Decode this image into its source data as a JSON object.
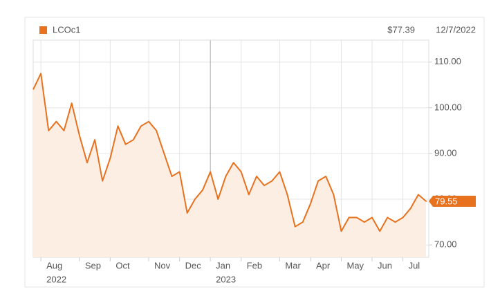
{
  "chart_data": {
    "type": "line",
    "annotations": [
      "$77.39",
      "12/7/2022"
    ],
    "categories": [
      null,
      "Aug",
      null,
      null,
      null,
      null,
      "Sep",
      null,
      null,
      null,
      "Oct",
      null,
      null,
      null,
      null,
      "Nov",
      null,
      null,
      null,
      "Dec",
      null,
      null,
      null,
      "Jan",
      null,
      null,
      null,
      "Feb",
      null,
      null,
      null,
      null,
      "Mar",
      null,
      null,
      null,
      "Apr",
      null,
      null,
      null,
      "May",
      null,
      null,
      null,
      "Jun",
      null,
      null,
      null,
      "Jul",
      null,
      null,
      null
    ],
    "x_year_labels": [
      "2022",
      "2023"
    ],
    "series": [
      {
        "name": "LCOc1",
        "color": "#e8711e",
        "values": [
          104,
          107.5,
          95,
          97,
          95,
          101,
          94,
          88,
          93,
          84,
          89,
          96,
          92,
          93,
          96,
          97,
          95,
          90,
          85,
          86,
          77,
          80,
          82,
          86,
          80,
          85,
          88,
          86,
          81,
          85,
          83,
          84,
          86,
          81,
          74,
          75,
          79,
          84,
          85,
          81,
          73,
          76,
          76,
          75,
          76,
          73,
          76,
          75,
          76,
          78,
          81,
          79.55
        ]
      }
    ],
    "ylim": [
      67.3,
      114.8
    ],
    "yticks": [
      {
        "value": 70,
        "label": "70.00"
      },
      {
        "value": 80,
        "label": "80.00"
      },
      {
        "value": 90,
        "label": "90.00"
      },
      {
        "value": 100,
        "label": "100.00"
      },
      {
        "value": 110,
        "label": "110.00"
      }
    ],
    "grid": true
  }
}
